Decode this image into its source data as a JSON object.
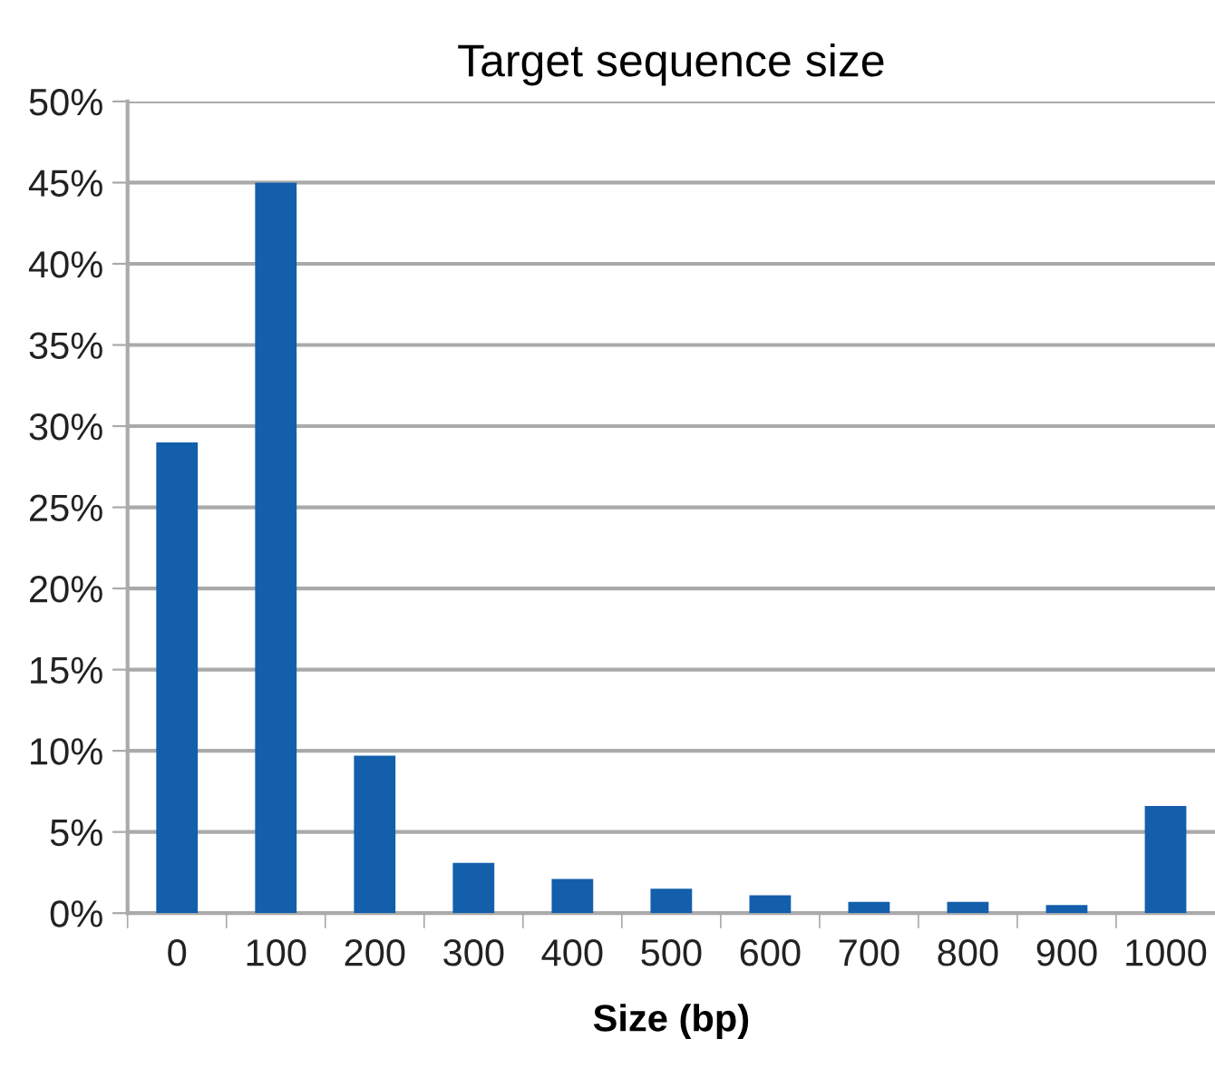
{
  "chart_data": {
    "type": "bar",
    "title": "Target sequence size",
    "xlabel": "Size (bp)",
    "categories": [
      "0",
      "100",
      "200",
      "300",
      "400",
      "500",
      "600",
      "700",
      "800",
      "900",
      "1000"
    ],
    "values": [
      29,
      45,
      9.7,
      3.1,
      2.1,
      1.5,
      1.1,
      0.7,
      0.7,
      0.5,
      6.6
    ],
    "color": "#135fac",
    "ylim": [
      0,
      50
    ],
    "yticks": [
      {
        "value": 0,
        "label": "0%"
      },
      {
        "value": 5,
        "label": "5%"
      },
      {
        "value": 10,
        "label": "10%"
      },
      {
        "value": 15,
        "label": "15%"
      },
      {
        "value": 20,
        "label": "20%"
      },
      {
        "value": 25,
        "label": "25%"
      },
      {
        "value": 30,
        "label": "30%"
      },
      {
        "value": 35,
        "label": "35%"
      },
      {
        "value": 40,
        "label": "40%"
      },
      {
        "value": 45,
        "label": "45%"
      },
      {
        "value": 50,
        "label": "50%"
      }
    ],
    "grid": "y"
  }
}
